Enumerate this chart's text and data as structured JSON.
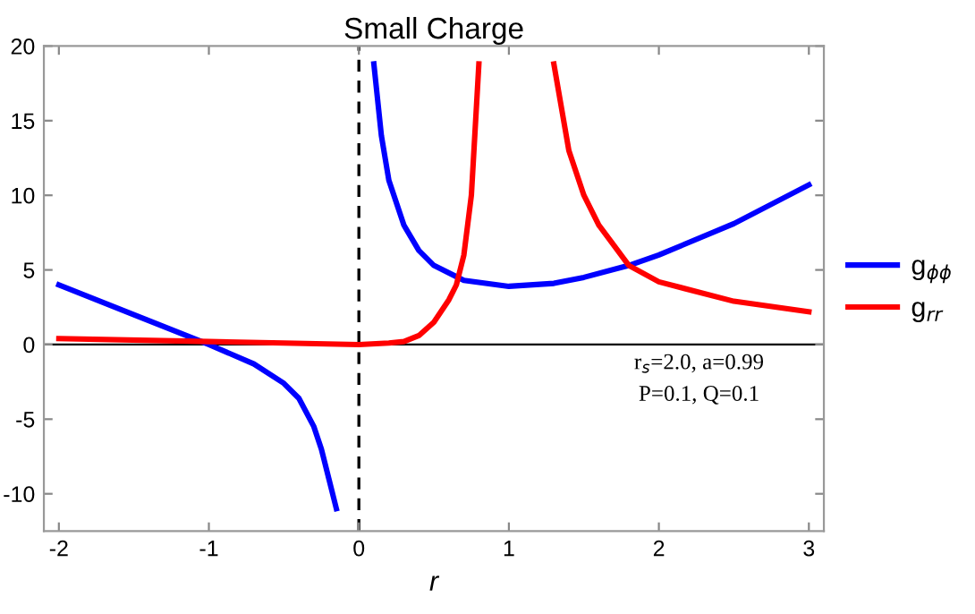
{
  "chart_data": {
    "type": "line",
    "title": "Small Charge",
    "xlabel": "r",
    "xlim": [
      -2.1,
      3.1
    ],
    "ylim": [
      -12.5,
      20
    ],
    "xticks": [
      -2,
      -1,
      0,
      1,
      2,
      3
    ],
    "yticks": [
      -10,
      -5,
      0,
      5,
      10,
      15,
      20
    ],
    "series": [
      {
        "name": "g$_{ϕϕ}$",
        "color": "#0000ff",
        "x": [
          -2,
          -1.5,
          -1,
          -0.7,
          -0.5,
          -0.4,
          -0.3,
          -0.25,
          -0.2,
          -0.15,
          0,
          0.1,
          0.15,
          0.2,
          0.3,
          0.4,
          0.5,
          0.7,
          1.0,
          1.3,
          1.5,
          1.8,
          2.0,
          2.5,
          3.0
        ],
        "values": [
          4,
          2,
          0,
          -1.3,
          -2.6,
          -3.6,
          -5.5,
          -7,
          -9,
          -11,
          null,
          18.8,
          14,
          11,
          8,
          6.3,
          5.3,
          4.3,
          3.9,
          4.1,
          4.5,
          5.3,
          6,
          8.1,
          10.7
        ]
      },
      {
        "name": "g$_{rr}$",
        "color": "#ff0000",
        "x": [
          -2,
          -1,
          -0.5,
          0,
          0.2,
          0.3,
          0.4,
          0.5,
          0.6,
          0.65,
          0.7,
          0.75,
          0.8,
          1.0,
          1.3,
          1.4,
          1.5,
          1.6,
          1.8,
          2.0,
          2.5,
          3.0
        ],
        "values": [
          0.4,
          0.2,
          0.1,
          0,
          0.1,
          0.2,
          0.6,
          1.5,
          3,
          4,
          6,
          10,
          18.8,
          null,
          18.8,
          13,
          10,
          8,
          5.3,
          4.2,
          2.9,
          2.2
        ]
      }
    ],
    "ref_lines": [
      {
        "axis": "x",
        "value": 0,
        "color": "#000000",
        "line_style": "dashed"
      },
      {
        "axis": "y",
        "value": 0,
        "color": "#000000",
        "line_style": "solid"
      }
    ],
    "annotations": [
      "r$_{s}$=2.0, a=0.99",
      "P=0.1, Q=0.1"
    ],
    "legend": "right",
    "grid": false,
    "marker": "none",
    "line_style": "solid"
  }
}
